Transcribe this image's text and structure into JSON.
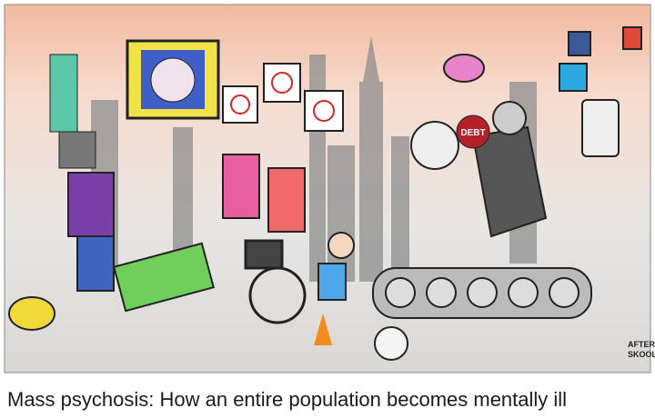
{
  "image": {
    "debt_label": "DEBT",
    "signature": [
      "AFTER",
      "SKOOL"
    ]
  },
  "caption": "Mass psychosis: How an entire population becomes mentally ill"
}
